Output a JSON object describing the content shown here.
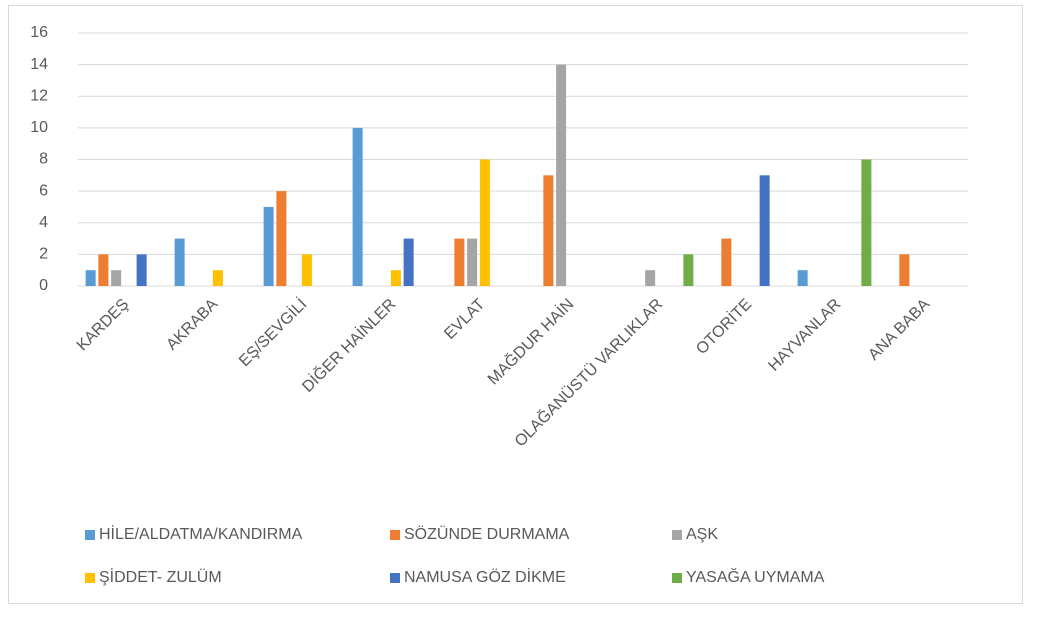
{
  "chart_data": {
    "type": "bar",
    "categories": [
      "KARDEŞ",
      "AKRABA",
      "EŞ/SEVGİLİ",
      "DİĞER HAİNLER",
      "EVLAT",
      "MAĞDUR HAİN",
      "OLAĞANÜSTÜ VARLIKLAR",
      "OTORİTE",
      "HAYVANLAR",
      "ANA BABA"
    ],
    "series": [
      {
        "name": "HİLE/ALDATMA/KANDIRMA",
        "color": "#5b9bd5",
        "values": [
          1,
          3,
          5,
          10,
          0,
          0,
          0,
          0,
          1,
          0
        ]
      },
      {
        "name": "SÖZÜNDE DURMAMA",
        "color": "#ed7d31",
        "values": [
          2,
          0,
          6,
          0,
          3,
          7,
          0,
          3,
          0,
          2
        ]
      },
      {
        "name": "AŞK",
        "color": "#a5a5a5",
        "values": [
          1,
          0,
          0,
          0,
          3,
          14,
          1,
          0,
          0,
          0
        ]
      },
      {
        "name": "ŞİDDET- ZULÜM",
        "color": "#ffc000",
        "values": [
          0,
          1,
          2,
          1,
          8,
          0,
          0,
          0,
          0,
          0
        ]
      },
      {
        "name": "NAMUSA GÖZ DİKME",
        "color": "#4472c4",
        "values": [
          2,
          0,
          0,
          3,
          0,
          0,
          0,
          7,
          0,
          0
        ]
      },
      {
        "name": "YASAĞA UYMAMA",
        "color": "#70ad47",
        "values": [
          0,
          0,
          0,
          0,
          0,
          0,
          2,
          0,
          8,
          0
        ]
      }
    ],
    "ylim": [
      0,
      16
    ],
    "yticks": [
      0,
      2,
      4,
      6,
      8,
      10,
      12,
      14,
      16
    ],
    "grid": true,
    "legend": "bottom"
  }
}
